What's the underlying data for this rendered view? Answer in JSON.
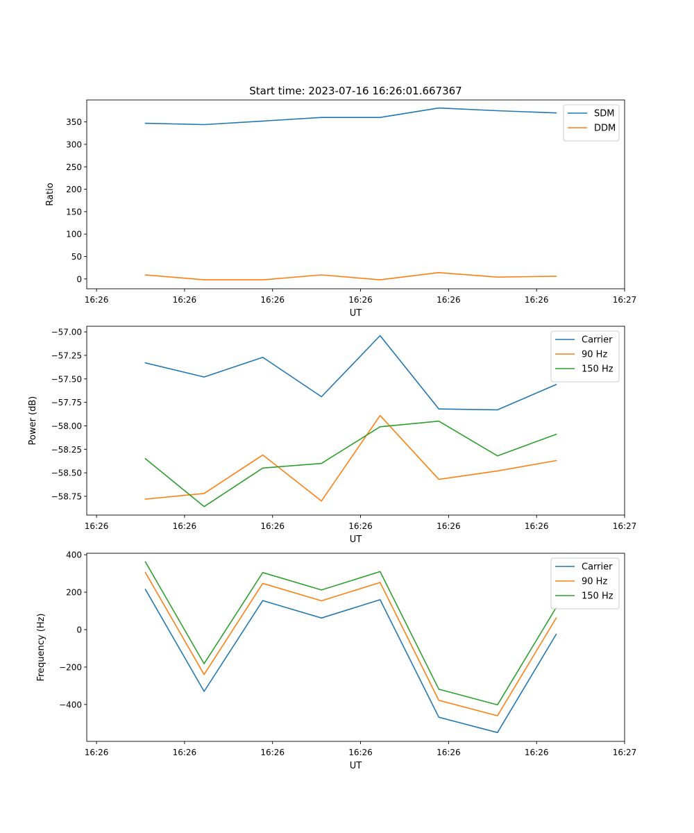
{
  "chart_data": [
    {
      "type": "line",
      "title": "Start time: 2023-07-16 16:26:01.667367",
      "xlabel": "UT",
      "ylabel": "Ratio",
      "x": [
        0.6,
        1.2,
        1.8,
        2.4,
        3.0,
        3.6,
        4.2,
        4.8
      ],
      "xlim": [
        0.0,
        5.5
      ],
      "xticks": [
        0.1,
        1.0,
        1.9,
        2.8,
        3.7,
        4.6,
        5.5
      ],
      "xtick_labels": [
        "16:26",
        "16:26",
        "16:26",
        "16:26",
        "16:26",
        "16:26",
        "16:27"
      ],
      "ylim": [
        -22,
        399
      ],
      "yticks": [
        0,
        50,
        100,
        150,
        200,
        250,
        300,
        350
      ],
      "ytick_labels": [
        "0",
        "50",
        "100",
        "150",
        "200",
        "250",
        "300",
        "350"
      ],
      "legend": "upper right",
      "series": [
        {
          "name": "SDM",
          "color": "#1f77b4",
          "values": [
            347,
            344,
            352,
            360,
            360,
            381,
            375,
            370
          ]
        },
        {
          "name": "DDM",
          "color": "#ff7f0e",
          "values": [
            9,
            -2,
            -2,
            9,
            -2,
            14,
            4,
            6
          ]
        }
      ]
    },
    {
      "type": "line",
      "title": "",
      "xlabel": "UT",
      "ylabel": "Power (dB)",
      "x": [
        0.6,
        1.2,
        1.8,
        2.4,
        3.0,
        3.6,
        4.2,
        4.8
      ],
      "xlim": [
        0.0,
        5.5
      ],
      "xticks": [
        0.1,
        1.0,
        1.9,
        2.8,
        3.7,
        4.6,
        5.5
      ],
      "xtick_labels": [
        "16:26",
        "16:26",
        "16:26",
        "16:26",
        "16:26",
        "16:26",
        "16:27"
      ],
      "ylim": [
        -58.95,
        -56.94
      ],
      "yticks": [
        -58.75,
        -58.5,
        -58.25,
        -58.0,
        -57.75,
        -57.5,
        -57.25,
        -57.0
      ],
      "ytick_labels": [
        "−58.75",
        "−58.50",
        "−58.25",
        "−58.00",
        "−57.75",
        "−57.50",
        "−57.25",
        "−57.00"
      ],
      "legend": "upper right",
      "series": [
        {
          "name": "Carrier",
          "color": "#1f77b4",
          "values": [
            -57.33,
            -57.48,
            -57.27,
            -57.69,
            -57.04,
            -57.82,
            -57.83,
            -57.56
          ]
        },
        {
          "name": "90 Hz",
          "color": "#ff7f0e",
          "values": [
            -58.78,
            -58.72,
            -58.31,
            -58.8,
            -57.89,
            -58.57,
            -58.48,
            -58.37
          ]
        },
        {
          "name": "150 Hz",
          "color": "#2ca02c",
          "values": [
            -58.35,
            -58.86,
            -58.45,
            -58.4,
            -58.01,
            -57.95,
            -58.32,
            -58.09
          ]
        }
      ]
    },
    {
      "type": "line",
      "title": "",
      "xlabel": "UT",
      "ylabel": "Frequency (Hz)",
      "x": [
        0.6,
        1.2,
        1.8,
        2.4,
        3.0,
        3.6,
        4.2,
        4.8
      ],
      "xlim": [
        0.0,
        5.5
      ],
      "xticks": [
        0.1,
        1.0,
        1.9,
        2.8,
        3.7,
        4.6,
        5.5
      ],
      "xtick_labels": [
        "16:26",
        "16:26",
        "16:26",
        "16:26",
        "16:26",
        "16:26",
        "16:27"
      ],
      "ylim": [
        -597,
        408
      ],
      "yticks": [
        -400,
        -200,
        0,
        200,
        400
      ],
      "ytick_labels": [
        "−400",
        "−200",
        "0",
        "200",
        "400"
      ],
      "legend": "upper right",
      "series": [
        {
          "name": "Carrier",
          "color": "#1f77b4",
          "values": [
            215,
            -330,
            155,
            62,
            160,
            -468,
            -550,
            -25
          ]
        },
        {
          "name": "90 Hz",
          "color": "#ff7f0e",
          "values": [
            305,
            -240,
            247,
            154,
            252,
            -378,
            -460,
            62
          ]
        },
        {
          "name": "150 Hz",
          "color": "#2ca02c",
          "values": [
            362,
            -182,
            305,
            212,
            310,
            -318,
            -402,
            118
          ]
        }
      ]
    }
  ]
}
